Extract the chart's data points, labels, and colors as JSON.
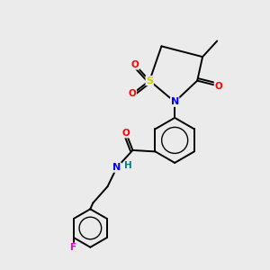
{
  "bg_color": "#ebebeb",
  "bond_color": "#000000",
  "atom_colors": {
    "O": "#ff0000",
    "N": "#0000ff",
    "S": "#cccc00",
    "F": "#ff00cc",
    "H": "#008080",
    "C": "#000000"
  },
  "figsize": [
    3.0,
    3.0
  ],
  "dpi": 100,
  "lw": 1.4
}
